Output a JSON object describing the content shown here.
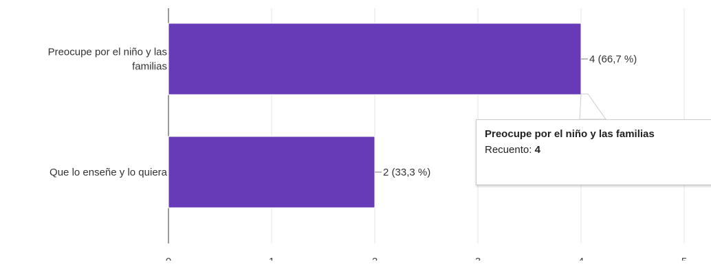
{
  "chart_data": {
    "type": "bar",
    "orientation": "horizontal",
    "categories": [
      [
        "Preocupe por el niño y las",
        "familias"
      ],
      [
        "Que lo enseñe y lo quiera"
      ]
    ],
    "values": [
      4,
      2
    ],
    "data_labels": [
      "4 (66,7 %)",
      "2 (33,3 %)"
    ],
    "x_ticks": [
      "0",
      "1",
      "2",
      "3",
      "4",
      "5"
    ],
    "xlim": [
      0,
      5
    ],
    "grid": true,
    "bar_color": "#673ab7"
  },
  "tooltip": {
    "title": "Preocupe por el niño y las familias",
    "count_label": "Recuento:",
    "count_value": "4"
  }
}
